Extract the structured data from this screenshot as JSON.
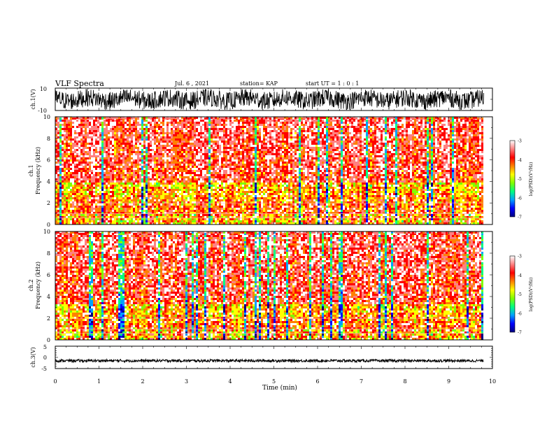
{
  "header": {
    "title": "VLF Spectra",
    "date": "Jul. 6 , 2021",
    "station": "station= KAP",
    "start": "start  UT =   1 : 0  : 1"
  },
  "chart_data": [
    {
      "type": "line",
      "panel": "ch1-waveform",
      "ylabel": "ch.1(V)",
      "ylim": [
        -10,
        10
      ],
      "y_ticks": [
        "10",
        "-10"
      ],
      "xlim": [
        0,
        10
      ],
      "data_extent_min": 9.8,
      "description_of_signal": "dense oscillating waveform spanning full range",
      "amplitude": 8
    },
    {
      "type": "heatmap",
      "panel": "ch1-spectrogram",
      "ylabel": "Frequency (kHz)",
      "channel_label": "ch.1",
      "ylim": [
        0,
        10
      ],
      "y_ticks": [
        "0",
        "2",
        "4",
        "6",
        "8",
        "10"
      ],
      "xlim": [
        0,
        10
      ],
      "data_extent_min": 9.8,
      "hot_band_top_khz": 3.8
    },
    {
      "type": "heatmap",
      "panel": "ch2-spectrogram",
      "ylabel": "Frequency (kHz)",
      "channel_label": "ch.2",
      "ylim": [
        0,
        10
      ],
      "y_ticks": [
        "0",
        "2",
        "4",
        "6",
        "8",
        "10"
      ],
      "xlim": [
        0,
        10
      ],
      "data_extent_min": 9.8,
      "hot_band_top_khz": 3.2
    },
    {
      "type": "line",
      "panel": "ch3-waveform",
      "ylabel": "ch.3(V)",
      "ylim": [
        -5,
        5
      ],
      "y_ticks": [
        "5",
        "0",
        "-5"
      ],
      "xlim": [
        0,
        10
      ],
      "xlabel": "Time (min)",
      "x_ticks": [
        "0",
        "1",
        "2",
        "3",
        "4",
        "5",
        "6",
        "7",
        "8",
        "9",
        "10"
      ],
      "data_extent_min": 9.8,
      "level": -1.5,
      "amplitude": 0.6
    }
  ],
  "colorbar": {
    "label": "log(PSD)(V²/Hz)",
    "ticks": [
      "-3",
      "-4",
      "-5",
      "-6",
      "-7"
    ],
    "range": [
      -7,
      -3
    ],
    "colors": [
      "#000080",
      "#0000ff",
      "#00a0ff",
      "#00ff80",
      "#80ff00",
      "#ffff00",
      "#ff8000",
      "#ff0000",
      "#ff8080",
      "#ffffff"
    ]
  }
}
